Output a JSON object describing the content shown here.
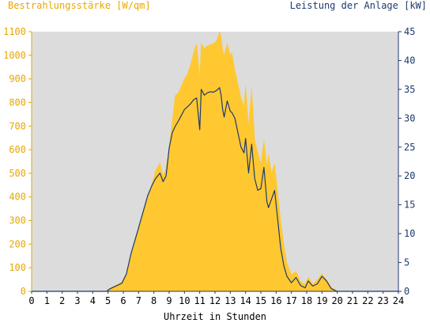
{
  "colors": {
    "background": "#ffffff",
    "plot_background": "#dcdcdc",
    "irradiance": "#ffc830",
    "power": "#1e3a6e",
    "left_axis_text": "#e6a800",
    "right_axis_text": "#1e3a6e",
    "x_axis_text": "#000000"
  },
  "chart_data": {
    "type": "area",
    "left_axis_title": "Bestrahlungsstärke [W/qm]",
    "right_axis_title": "Leistung der Anlage [kW]",
    "xlabel": "Uhrzeit in Stunden",
    "xlim": [
      0,
      24
    ],
    "ylim_left": [
      0,
      1100
    ],
    "ylim_right": [
      0,
      45
    ],
    "x_ticks": [
      "0",
      "1",
      "2",
      "3",
      "4",
      "5",
      "6",
      "7",
      "8",
      "9",
      "10",
      "11",
      "12",
      "13",
      "14",
      "15",
      "16",
      "17",
      "18",
      "19",
      "20",
      "21",
      "22",
      "23",
      "24"
    ],
    "y_ticks_left": [
      "0",
      "100",
      "200",
      "300",
      "400",
      "500",
      "600",
      "700",
      "800",
      "900",
      "1000",
      "1100"
    ],
    "y_ticks_right": [
      "0",
      "5",
      "10",
      "15",
      "20",
      "25",
      "30",
      "35",
      "40",
      "45"
    ],
    "grid": false,
    "series": [
      {
        "name": "Bestrahlungsstärke [W/qm]",
        "axis": "left",
        "type": "area",
        "x": [
          0,
          4.9,
          5.1,
          5.5,
          5.9,
          6.2,
          6.5,
          6.8,
          7.0,
          7.3,
          7.6,
          7.9,
          8.1,
          8.4,
          8.6,
          8.8,
          9.0,
          9.2,
          9.4,
          9.6,
          9.8,
          10.0,
          10.2,
          10.4,
          10.6,
          10.8,
          11.0,
          11.1,
          11.3,
          11.5,
          11.7,
          11.9,
          12.1,
          12.3,
          12.4,
          12.5,
          12.6,
          12.8,
          13.0,
          13.1,
          13.3,
          13.5,
          13.7,
          13.9,
          14.0,
          14.2,
          14.4,
          14.6,
          14.8,
          15.0,
          15.2,
          15.4,
          15.5,
          15.7,
          15.9,
          16.1,
          16.3,
          16.5,
          16.7,
          17.0,
          17.3,
          17.6,
          17.9,
          18.1,
          18.4,
          18.7,
          19.0,
          19.3,
          19.6,
          19.9,
          20.0,
          24
        ],
        "y": [
          0,
          0,
          12,
          25,
          40,
          75,
          160,
          230,
          260,
          330,
          400,
          460,
          510,
          545,
          490,
          520,
          610,
          720,
          830,
          840,
          870,
          900,
          920,
          960,
          1010,
          1050,
          900,
          1050,
          1030,
          1040,
          1045,
          1050,
          1060,
          1100,
          1080,
          1020,
          1000,
          1050,
          1000,
          1010,
          940,
          880,
          820,
          780,
          870,
          700,
          860,
          640,
          590,
          540,
          640,
          530,
          580,
          500,
          540,
          420,
          300,
          200,
          120,
          70,
          85,
          40,
          30,
          60,
          30,
          50,
          75,
          50,
          20,
          5,
          0,
          0
        ]
      },
      {
        "name": "Leistung der Anlage [kW]",
        "axis": "right",
        "type": "line",
        "x": [
          0,
          4.9,
          5.1,
          5.5,
          5.9,
          6.2,
          6.5,
          6.8,
          7.0,
          7.3,
          7.6,
          7.9,
          8.1,
          8.4,
          8.6,
          8.8,
          9.0,
          9.2,
          9.4,
          9.6,
          9.8,
          10.0,
          10.2,
          10.4,
          10.6,
          10.8,
          11.0,
          11.1,
          11.3,
          11.5,
          11.7,
          11.9,
          12.1,
          12.3,
          12.4,
          12.5,
          12.6,
          12.8,
          13.0,
          13.1,
          13.3,
          13.5,
          13.7,
          13.9,
          14.0,
          14.2,
          14.4,
          14.6,
          14.8,
          15.0,
          15.2,
          15.4,
          15.5,
          15.7,
          15.9,
          16.1,
          16.3,
          16.5,
          16.7,
          17.0,
          17.3,
          17.6,
          17.9,
          18.1,
          18.4,
          18.7,
          19.0,
          19.3,
          19.6,
          19.9,
          20.0,
          24
        ],
        "y": [
          0,
          0,
          0.4,
          0.9,
          1.4,
          3.0,
          6.5,
          9.2,
          11.0,
          13.8,
          16.6,
          18.5,
          19.5,
          20.5,
          19.0,
          20.0,
          24.8,
          27.5,
          28.6,
          29.5,
          30.5,
          31.5,
          32.0,
          32.5,
          33.2,
          33.5,
          28.0,
          35.0,
          34.0,
          34.4,
          34.6,
          34.5,
          34.8,
          35.3,
          34.0,
          31.5,
          30.2,
          33.0,
          31.2,
          31.0,
          30.0,
          27.5,
          25.0,
          24.0,
          26.5,
          20.5,
          25.5,
          19.5,
          17.5,
          17.8,
          21.5,
          15.5,
          14.5,
          16.0,
          17.5,
          12.5,
          7.5,
          4.5,
          2.6,
          1.5,
          2.4,
          1.0,
          0.6,
          1.8,
          0.9,
          1.3,
          2.6,
          1.8,
          0.5,
          0.1,
          0,
          0
        ]
      }
    ]
  }
}
